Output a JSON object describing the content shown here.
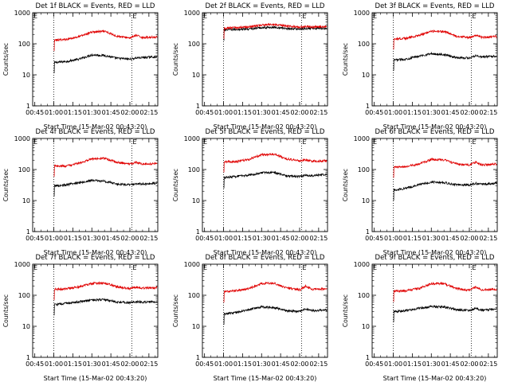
{
  "colors": {
    "events": "#000000",
    "lld": "#e00000",
    "axis": "#000000",
    "background": "#ffffff"
  },
  "common": {
    "xlabel": "Start Time (15-Mar-02 00:43:20)",
    "ylabel": "Counts/sec",
    "x_tick_labels": [
      "00:45",
      "01:00",
      "01:15",
      "01:30",
      "01:45",
      "02:00",
      "02:15"
    ],
    "x_ticks_minutes": [
      45,
      60,
      75,
      90,
      105,
      120,
      135
    ],
    "x_range_minutes": [
      43.33,
      142
    ],
    "y_tick_labels": [
      "1",
      "10",
      "100",
      "1000"
    ],
    "y_ticks": [
      1,
      10,
      100,
      1000
    ],
    "ylim": [
      1,
      1000
    ],
    "yscale": "log",
    "marker_label": "E"
  },
  "chart_data": [
    {
      "type": "line",
      "title": "Det 1f BLACK = Events, RED = LLD",
      "start": 60,
      "markers": [
        60,
        121.5
      ],
      "series": [
        {
          "key": "events",
          "values": [
            [
              61,
              25
            ],
            [
              70,
              27
            ],
            [
              80,
              32
            ],
            [
              90,
              44
            ],
            [
              100,
              42
            ],
            [
              110,
              34
            ],
            [
              120,
              32
            ],
            [
              125,
              35
            ],
            [
              130,
              36
            ],
            [
              140,
              38
            ]
          ]
        },
        {
          "key": "lld",
          "values": [
            [
              61,
              130
            ],
            [
              70,
              140
            ],
            [
              80,
              170
            ],
            [
              90,
              240
            ],
            [
              100,
              250
            ],
            [
              110,
              175
            ],
            [
              120,
              155
            ],
            [
              125,
              185
            ],
            [
              130,
              160
            ],
            [
              140,
              165
            ]
          ]
        }
      ]
    },
    {
      "type": "line",
      "title": "Det 2f BLACK = Events, RED = LLD",
      "start": 60,
      "markers": [
        60,
        121.5
      ],
      "series": [
        {
          "key": "events",
          "values": [
            [
              61,
              280
            ],
            [
              70,
              290
            ],
            [
              80,
              300
            ],
            [
              90,
              330
            ],
            [
              100,
              340
            ],
            [
              110,
              310
            ],
            [
              120,
              300
            ],
            [
              125,
              310
            ],
            [
              130,
              320
            ],
            [
              140,
              315
            ]
          ]
        },
        {
          "key": "lld",
          "values": [
            [
              61,
              320
            ],
            [
              70,
              330
            ],
            [
              80,
              350
            ],
            [
              90,
              400
            ],
            [
              100,
              420
            ],
            [
              110,
              370
            ],
            [
              120,
              350
            ],
            [
              125,
              360
            ],
            [
              130,
              350
            ],
            [
              140,
              360
            ]
          ]
        }
      ]
    },
    {
      "type": "line",
      "title": "Det 3f BLACK = Events, RED = LLD",
      "start": 60,
      "markers": [
        60,
        121.5
      ],
      "series": [
        {
          "key": "events",
          "values": [
            [
              61,
              30
            ],
            [
              70,
              32
            ],
            [
              80,
              40
            ],
            [
              90,
              48
            ],
            [
              100,
              45
            ],
            [
              110,
              36
            ],
            [
              120,
              35
            ],
            [
              125,
              42
            ],
            [
              130,
              38
            ],
            [
              140,
              40
            ]
          ]
        },
        {
          "key": "lld",
          "values": [
            [
              61,
              145
            ],
            [
              70,
              150
            ],
            [
              80,
              185
            ],
            [
              90,
              250
            ],
            [
              100,
              250
            ],
            [
              110,
              175
            ],
            [
              120,
              160
            ],
            [
              125,
              185
            ],
            [
              130,
              160
            ],
            [
              140,
              170
            ]
          ]
        }
      ]
    },
    {
      "type": "line",
      "title": "Det 4f BLACK = Events, RED = LLD",
      "start": 60,
      "markers": [
        60,
        121.5
      ],
      "series": [
        {
          "key": "events",
          "values": [
            [
              61,
              30
            ],
            [
              70,
              32
            ],
            [
              80,
              38
            ],
            [
              90,
              45
            ],
            [
              100,
              42
            ],
            [
              110,
              34
            ],
            [
              120,
              32
            ],
            [
              125,
              35
            ],
            [
              130,
              34
            ],
            [
              140,
              36
            ]
          ]
        },
        {
          "key": "lld",
          "values": [
            [
              61,
              130
            ],
            [
              70,
              130
            ],
            [
              80,
              160
            ],
            [
              90,
              220
            ],
            [
              100,
              230
            ],
            [
              110,
              170
            ],
            [
              120,
              150
            ],
            [
              125,
              170
            ],
            [
              130,
              150
            ],
            [
              140,
              155
            ]
          ]
        }
      ]
    },
    {
      "type": "line",
      "title": "Det 5f BLACK = Events, RED = LLD",
      "start": 60,
      "markers": [
        60,
        121.5
      ],
      "series": [
        {
          "key": "events",
          "values": [
            [
              61,
              55
            ],
            [
              70,
              60
            ],
            [
              80,
              65
            ],
            [
              90,
              80
            ],
            [
              100,
              80
            ],
            [
              110,
              62
            ],
            [
              120,
              60
            ],
            [
              125,
              65
            ],
            [
              130,
              62
            ],
            [
              140,
              70
            ]
          ]
        },
        {
          "key": "lld",
          "values": [
            [
              61,
              180
            ],
            [
              70,
              180
            ],
            [
              80,
              210
            ],
            [
              90,
              300
            ],
            [
              100,
              310
            ],
            [
              110,
              220
            ],
            [
              120,
              190
            ],
            [
              125,
              205
            ],
            [
              130,
              185
            ],
            [
              140,
              190
            ]
          ]
        }
      ]
    },
    {
      "type": "line",
      "title": "Det 6f BLACK = Events, RED = LLD",
      "start": 60,
      "markers": [
        60,
        121.5
      ],
      "series": [
        {
          "key": "events",
          "values": [
            [
              61,
              22
            ],
            [
              70,
              25
            ],
            [
              80,
              32
            ],
            [
              90,
              40
            ],
            [
              100,
              38
            ],
            [
              110,
              32
            ],
            [
              120,
              32
            ],
            [
              125,
              36
            ],
            [
              130,
              33
            ],
            [
              140,
              36
            ]
          ]
        },
        {
          "key": "lld",
          "values": [
            [
              61,
              120
            ],
            [
              70,
              125
            ],
            [
              80,
              150
            ],
            [
              90,
              210
            ],
            [
              100,
              205
            ],
            [
              110,
              150
            ],
            [
              120,
              140
            ],
            [
              125,
              175
            ],
            [
              130,
              140
            ],
            [
              140,
              150
            ]
          ]
        }
      ]
    },
    {
      "type": "line",
      "title": "Det 7f BLACK = Events, RED = LLD",
      "start": 60,
      "markers": [
        60,
        121.5
      ],
      "series": [
        {
          "key": "events",
          "values": [
            [
              61,
              50
            ],
            [
              70,
              55
            ],
            [
              80,
              62
            ],
            [
              90,
              70
            ],
            [
              100,
              72
            ],
            [
              110,
              60
            ],
            [
              120,
              58
            ],
            [
              125,
              62
            ],
            [
              130,
              60
            ],
            [
              140,
              62
            ]
          ]
        },
        {
          "key": "lld",
          "values": [
            [
              61,
              155
            ],
            [
              70,
              165
            ],
            [
              80,
              185
            ],
            [
              90,
              240
            ],
            [
              100,
              250
            ],
            [
              110,
              185
            ],
            [
              120,
              165
            ],
            [
              125,
              185
            ],
            [
              130,
              170
            ],
            [
              140,
              175
            ]
          ]
        }
      ]
    },
    {
      "type": "line",
      "title": "Det 8f BLACK = Events, RED = LLD",
      "start": 60,
      "markers": [
        60,
        121.5
      ],
      "series": [
        {
          "key": "events",
          "values": [
            [
              61,
              25
            ],
            [
              70,
              28
            ],
            [
              80,
              35
            ],
            [
              90,
              42
            ],
            [
              100,
              40
            ],
            [
              110,
              32
            ],
            [
              120,
              30
            ],
            [
              125,
              36
            ],
            [
              130,
              32
            ],
            [
              140,
              34
            ]
          ]
        },
        {
          "key": "lld",
          "values": [
            [
              61,
              130
            ],
            [
              70,
              140
            ],
            [
              80,
              165
            ],
            [
              90,
              240
            ],
            [
              100,
              245
            ],
            [
              110,
              170
            ],
            [
              120,
              150
            ],
            [
              125,
              200
            ],
            [
              130,
              155
            ],
            [
              140,
              160
            ]
          ]
        }
      ]
    },
    {
      "type": "line",
      "title": "Det 9f BLACK = Events, RED = LLD",
      "start": 60,
      "markers": [
        60,
        121.5
      ],
      "series": [
        {
          "key": "events",
          "values": [
            [
              61,
              30
            ],
            [
              70,
              32
            ],
            [
              80,
              38
            ],
            [
              90,
              44
            ],
            [
              100,
              42
            ],
            [
              110,
              34
            ],
            [
              120,
              32
            ],
            [
              125,
              38
            ],
            [
              130,
              33
            ],
            [
              140,
              36
            ]
          ]
        },
        {
          "key": "lld",
          "values": [
            [
              61,
              135
            ],
            [
              70,
              140
            ],
            [
              80,
              165
            ],
            [
              90,
              235
            ],
            [
              100,
              240
            ],
            [
              110,
              165
            ],
            [
              120,
              145
            ],
            [
              125,
              185
            ],
            [
              130,
              150
            ],
            [
              140,
              155
            ]
          ]
        }
      ]
    }
  ]
}
